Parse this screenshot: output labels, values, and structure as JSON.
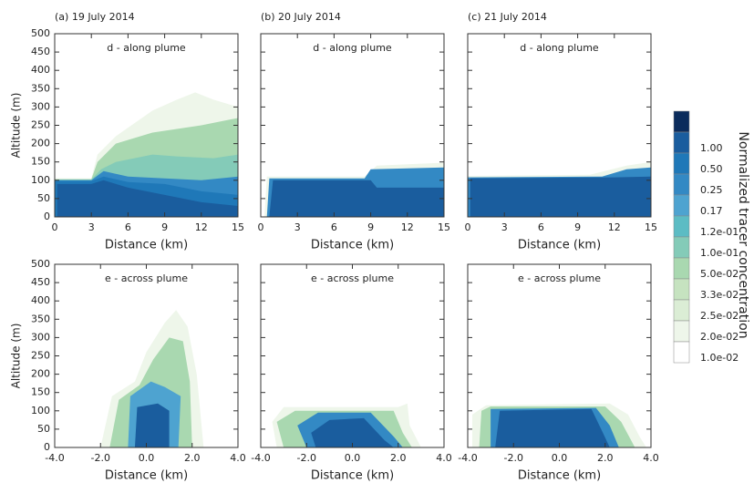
{
  "chart_data": [
    {
      "type": "contour",
      "title": "(a) 19 July 2014",
      "subtitle": "d - along plume",
      "xlabel": "Distance (km)",
      "ylabel": "Altitude (m)",
      "xlim": [
        0,
        15
      ],
      "xticks": [
        0,
        3,
        6,
        9,
        12,
        15
      ],
      "ylim": [
        0,
        500
      ],
      "yticks": [
        0,
        50,
        100,
        150,
        200,
        250,
        300,
        350,
        400,
        450,
        500
      ],
      "contours": [
        {
          "color": "#eef6ea",
          "x": [
            0,
            0,
            3,
            3.5,
            5,
            8,
            10,
            11.5,
            13,
            15,
            15
          ],
          "y": [
            0,
            105,
            105,
            170,
            220,
            290,
            320,
            340,
            320,
            300,
            0
          ]
        },
        {
          "color": "#a9d8b0",
          "x": [
            0,
            0,
            3,
            3.5,
            5,
            8,
            10,
            12,
            15,
            15
          ],
          "y": [
            0,
            103,
            103,
            150,
            200,
            230,
            240,
            250,
            270,
            0
          ]
        },
        {
          "color": "#84cbb8",
          "x": [
            0,
            0,
            3,
            3.8,
            5,
            8,
            10,
            13,
            15,
            15
          ],
          "y": [
            0,
            102,
            102,
            130,
            150,
            170,
            165,
            160,
            170,
            0
          ]
        },
        {
          "color": "#3389c4",
          "x": [
            0,
            0,
            3,
            4,
            6,
            9,
            12,
            15,
            15
          ],
          "y": [
            0,
            100,
            100,
            125,
            110,
            105,
            100,
            110,
            0
          ]
        },
        {
          "color": "#1f78b8",
          "x": [
            0,
            0,
            3,
            4,
            6,
            9,
            12,
            15,
            15
          ],
          "y": [
            0,
            98,
            98,
            110,
            95,
            90,
            70,
            60,
            0
          ]
        },
        {
          "color": "#1a5d9e",
          "x": [
            0.2,
            0.2,
            3,
            4,
            6,
            9,
            12,
            15,
            15
          ],
          "y": [
            0,
            90,
            90,
            100,
            80,
            60,
            40,
            30,
            0
          ]
        }
      ]
    },
    {
      "type": "contour",
      "title": "(b) 20 July 2014",
      "subtitle": "d - along plume",
      "xlabel": "Distance (km)",
      "xlim": [
        0,
        15
      ],
      "xticks": [
        0,
        3,
        6,
        9,
        12,
        15
      ],
      "ylim": [
        0,
        500
      ],
      "yticks": [
        0,
        50,
        100,
        150,
        200,
        250,
        300,
        350,
        400,
        450,
        500
      ],
      "contours": [
        {
          "color": "#eef6ea",
          "x": [
            0.3,
            0.5,
            8.5,
            9.5,
            15,
            15
          ],
          "y": [
            0,
            110,
            110,
            140,
            148,
            0
          ]
        },
        {
          "color": "#3389c4",
          "x": [
            0.5,
            0.7,
            8.5,
            9,
            15,
            15
          ],
          "y": [
            0,
            105,
            105,
            130,
            135,
            0
          ]
        },
        {
          "color": "#1a5d9e",
          "x": [
            0.7,
            1,
            9,
            9.5,
            15,
            15
          ],
          "y": [
            0,
            100,
            100,
            80,
            80,
            0
          ]
        }
      ]
    },
    {
      "type": "contour",
      "title": "(c) 21 July 2014",
      "subtitle": "d - along plume",
      "xlabel": "Distance (km)",
      "xlim": [
        0,
        15
      ],
      "xticks": [
        0,
        3,
        6,
        9,
        12,
        15
      ],
      "ylim": [
        0,
        500
      ],
      "yticks": [
        0,
        50,
        100,
        150,
        200,
        250,
        300,
        350,
        400,
        450,
        500
      ],
      "contours": [
        {
          "color": "#eef6ea",
          "x": [
            0,
            0,
            10,
            13,
            15,
            15
          ],
          "y": [
            0,
            112,
            115,
            140,
            150,
            0
          ]
        },
        {
          "color": "#3389c4",
          "x": [
            0,
            0,
            11,
            13,
            15,
            15
          ],
          "y": [
            0,
            108,
            110,
            130,
            135,
            0
          ]
        },
        {
          "color": "#1a5d9e",
          "x": [
            0.2,
            0.2,
            12,
            15,
            15
          ],
          "y": [
            0,
            105,
            108,
            110,
            0
          ]
        }
      ]
    },
    {
      "type": "contour",
      "subtitle": "e - across plume",
      "xlabel": "Distance (km)",
      "ylabel": "Altitude (m)",
      "xlim": [
        -4,
        4
      ],
      "xticks": [
        {
          "value": -4,
          "label": "-4.0"
        },
        {
          "value": -2,
          "label": "-2.0"
        },
        {
          "value": 0,
          "label": "0.0"
        },
        {
          "value": 2,
          "label": "2.0"
        },
        {
          "value": 4,
          "label": "4.0"
        }
      ],
      "ylim": [
        0,
        500
      ],
      "yticks": [
        0,
        50,
        100,
        150,
        200,
        250,
        300,
        350,
        400,
        450,
        500
      ],
      "contours": [
        {
          "color": "#eef6ea",
          "x": [
            -2,
            -1.5,
            -0.5,
            0,
            0.8,
            1.3,
            1.8,
            2.2,
            2.5
          ],
          "y": [
            0,
            140,
            180,
            260,
            340,
            375,
            330,
            200,
            0
          ]
        },
        {
          "color": "#a9d8b0",
          "x": [
            -1.6,
            -1.2,
            -0.3,
            0.3,
            1,
            1.6,
            1.9,
            2
          ],
          "y": [
            0,
            130,
            170,
            240,
            300,
            290,
            180,
            0
          ]
        },
        {
          "color": "#4ea3d0",
          "x": [
            -0.8,
            -0.7,
            0.2,
            0.8,
            1.5,
            1.4
          ],
          "y": [
            0,
            140,
            180,
            165,
            140,
            0
          ]
        },
        {
          "color": "#1a5d9e",
          "x": [
            -0.5,
            -0.4,
            0.5,
            1,
            1
          ],
          "y": [
            0,
            110,
            120,
            100,
            0
          ]
        }
      ]
    },
    {
      "type": "contour",
      "subtitle": "e - across plume",
      "xlabel": "Distance (km)",
      "xlim": [
        -4,
        4
      ],
      "xticks": [
        {
          "value": -4,
          "label": "-4.0"
        },
        {
          "value": -2,
          "label": "-2.0"
        },
        {
          "value": 0,
          "label": "0.0"
        },
        {
          "value": 2,
          "label": "2.0"
        },
        {
          "value": 4,
          "label": "4.0"
        }
      ],
      "ylim": [
        0,
        500
      ],
      "yticks": [
        0,
        50,
        100,
        150,
        200,
        250,
        300,
        350,
        400,
        450,
        500
      ],
      "contours": [
        {
          "color": "#eef6ea",
          "x": [
            -3.3,
            -3.5,
            -3,
            2,
            2.4,
            2.5,
            3
          ],
          "y": [
            0,
            70,
            110,
            110,
            120,
            60,
            0
          ]
        },
        {
          "color": "#a9d8b0",
          "x": [
            -3,
            -3.3,
            -2.5,
            1.8,
            2.2,
            2.6
          ],
          "y": [
            0,
            70,
            100,
            100,
            40,
            0
          ]
        },
        {
          "color": "#3389c4",
          "x": [
            -2,
            -2.4,
            -1.5,
            0.8,
            1.8,
            2.2
          ],
          "y": [
            0,
            60,
            95,
            95,
            30,
            0
          ]
        },
        {
          "color": "#1a5d9e",
          "x": [
            -1.6,
            -1.8,
            -1,
            0.5,
            1.4,
            1.8
          ],
          "y": [
            0,
            40,
            75,
            80,
            20,
            0
          ]
        }
      ]
    },
    {
      "type": "contour",
      "subtitle": "e - across plume",
      "xlabel": "Distance (km)",
      "xlim": [
        -4,
        4
      ],
      "xticks": [
        {
          "value": -4,
          "label": "-4.0"
        },
        {
          "value": -2,
          "label": "-2.0"
        },
        {
          "value": 0,
          "label": "0.0"
        },
        {
          "value": 2,
          "label": "2.0"
        },
        {
          "value": 4,
          "label": "4.0"
        }
      ],
      "ylim": [
        0,
        500
      ],
      "yticks": [
        0,
        50,
        100,
        150,
        200,
        250,
        300,
        350,
        400,
        450,
        500
      ],
      "contours": [
        {
          "color": "#eef6ea",
          "x": [
            -3.8,
            -3.8,
            -3.2,
            2.2,
            3,
            3.5,
            3.8
          ],
          "y": [
            0,
            90,
            115,
            120,
            90,
            30,
            0
          ]
        },
        {
          "color": "#a9d8b0",
          "x": [
            -3.5,
            -3.4,
            -3,
            2,
            2.7,
            3.3
          ],
          "y": [
            0,
            100,
            112,
            112,
            70,
            0
          ]
        },
        {
          "color": "#3389c4",
          "x": [
            -3,
            -3,
            1.6,
            2.2,
            2.6
          ],
          "y": [
            0,
            105,
            108,
            60,
            0
          ]
        },
        {
          "color": "#1a5d9e",
          "x": [
            -2.8,
            -2.6,
            1.4,
            1.9,
            2.2
          ],
          "y": [
            0,
            100,
            105,
            40,
            0
          ]
        }
      ]
    }
  ],
  "colorbar": {
    "title": "Normalized tracer concentration",
    "colors": [
      "#0b2c5c",
      "#1a5d9e",
      "#1f78b8",
      "#3389c4",
      "#4ea3d0",
      "#5cbcc4",
      "#84cbb8",
      "#a9d8b0",
      "#c6e3c0",
      "#dbedd5",
      "#eef6ea",
      "#ffffff"
    ],
    "ticks": [
      {
        "value": 1,
        "label": "1.00"
      },
      {
        "value": 0.5,
        "label": "0.50"
      },
      0.25,
      0.17,
      {
        "value": 0.12,
        "label": "1.2e-01"
      },
      {
        "value": 0.1,
        "label": "1.0e-01"
      },
      {
        "value": 0.05,
        "label": "5.0e-02"
      },
      {
        "value": 0.033,
        "label": "3.3e-02"
      },
      {
        "value": 0.025,
        "label": "2.5e-02"
      },
      {
        "value": 0.02,
        "label": "2.0e-02"
      },
      {
        "value": 0.01,
        "label": "1.0e-02"
      }
    ]
  }
}
